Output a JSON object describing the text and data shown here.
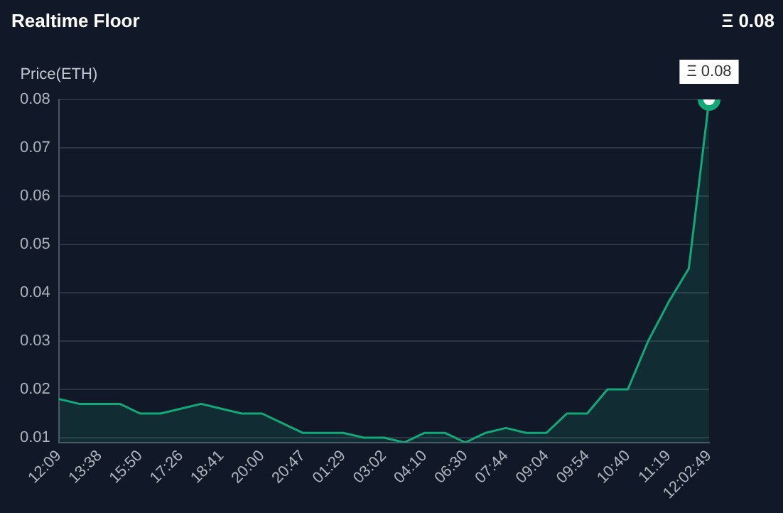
{
  "chart_data": {
    "type": "area",
    "title": "Realtime Floor",
    "subtitle": "Ξ 0.08",
    "ylabel": "Price(ETH)",
    "categories": [
      "12:09",
      null,
      "13:38",
      null,
      "15:50",
      null,
      "17:26",
      null,
      "18:41",
      null,
      "20:00",
      null,
      "20:47",
      null,
      "01:29",
      null,
      "03:02",
      null,
      "04:10",
      null,
      "06:30",
      null,
      "07:44",
      null,
      "09:04",
      null,
      "09:54",
      null,
      "10:40",
      null,
      "11:19",
      null,
      "12:02:49"
    ],
    "series": [
      {
        "color": "#12a877",
        "values": [
          0.018,
          0.017,
          0.017,
          0.017,
          0.015,
          0.015,
          0.016,
          0.017,
          0.016,
          0.015,
          0.015,
          0.013,
          0.011,
          0.011,
          0.011,
          0.01,
          0.01,
          0.009,
          0.011,
          0.011,
          0.009,
          0.011,
          0.012,
          0.011,
          0.011,
          0.015,
          0.015,
          0.02,
          0.02,
          0.03,
          0.038,
          0.045,
          0.08
        ],
        "value_labels": [
          null,
          null,
          null,
          null,
          null,
          null,
          null,
          null,
          null,
          null,
          null,
          null,
          null,
          null,
          null,
          null,
          null,
          null,
          null,
          null,
          null,
          null,
          null,
          null,
          null,
          null,
          null,
          null,
          null,
          null,
          null,
          null,
          "Ξ 0.08"
        ]
      }
    ],
    "ylim": [
      0.009,
      0.08
    ],
    "yticks": [
      0.01,
      0.02,
      0.03,
      0.04,
      0.05,
      0.06,
      0.07,
      0.08
    ],
    "grid": "y",
    "legend": false
  }
}
